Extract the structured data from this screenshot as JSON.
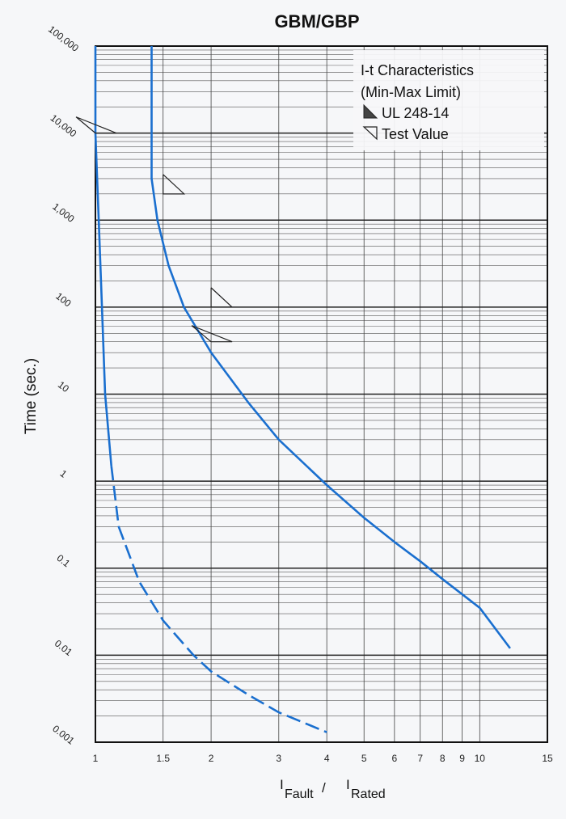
{
  "chart_data": {
    "type": "line",
    "title": "GBM/GBP",
    "ylabel": "Time (sec.)",
    "xlabel": {
      "numerator": "I",
      "numerator_sub": "Fault",
      "separator": "/",
      "denominator": "I",
      "denominator_sub": "Rated"
    },
    "x_scale": "log",
    "y_scale": "log",
    "xlim": [
      1,
      15
    ],
    "ylim": [
      0.001,
      100000
    ],
    "x_ticks": [
      1,
      1.5,
      2,
      3,
      4,
      5,
      6,
      7,
      8,
      9,
      10,
      15
    ],
    "x_tick_labels": [
      "1",
      "1.5",
      "2",
      "3",
      "4",
      "5",
      "6",
      "7",
      "8",
      "9",
      "10",
      "15"
    ],
    "y_ticks": [
      0.001,
      0.01,
      0.1,
      1,
      10,
      100,
      1000,
      10000,
      100000
    ],
    "y_tick_labels": [
      "0.001",
      "0.01",
      "0.1",
      "1",
      "10",
      "100",
      "1,000",
      "10,000",
      "100,000"
    ],
    "grid": true,
    "legend": {
      "placement": "top-right",
      "title_lines": [
        "I-t Characteristics",
        "(Min-Max Limit)"
      ],
      "entries": [
        {
          "marker": "filled-triangle",
          "label": "UL 248-14"
        },
        {
          "marker": "open-triangle",
          "label": "Test Value"
        }
      ]
    },
    "series": [
      {
        "role": "min-limit",
        "color": "#1a6fcf",
        "solid_points": [
          [
            1.0,
            100000
          ],
          [
            1.0,
            10000
          ],
          [
            1.02,
            1000
          ],
          [
            1.04,
            100
          ],
          [
            1.06,
            10
          ],
          [
            1.1,
            1.5
          ]
        ],
        "dashed_points": [
          [
            1.1,
            1.5
          ],
          [
            1.15,
            0.3
          ],
          [
            1.3,
            0.07
          ],
          [
            1.5,
            0.025
          ],
          [
            1.8,
            0.01
          ],
          [
            2.0,
            0.0065
          ],
          [
            2.5,
            0.0035
          ],
          [
            3.0,
            0.0022
          ],
          [
            4.0,
            0.0013
          ]
        ]
      },
      {
        "role": "max-limit",
        "color": "#1a6fcf",
        "solid_points": [
          [
            1.4,
            100000
          ],
          [
            1.4,
            3000
          ],
          [
            1.45,
            1000
          ],
          [
            1.55,
            300
          ],
          [
            1.7,
            100
          ],
          [
            2.0,
            30
          ],
          [
            2.5,
            8
          ],
          [
            3.0,
            3
          ],
          [
            4.0,
            0.9
          ],
          [
            5.0,
            0.38
          ],
          [
            6.0,
            0.2
          ],
          [
            7.0,
            0.12
          ],
          [
            8.0,
            0.075
          ],
          [
            10.0,
            0.035
          ],
          [
            12.0,
            0.012
          ]
        ]
      }
    ],
    "markers": [
      {
        "type": "ul",
        "x": 1.0,
        "y": 10000
      },
      {
        "type": "test",
        "x": 1.5,
        "y": 2000
      },
      {
        "type": "test",
        "x": 2.0,
        "y": 100
      },
      {
        "type": "ul",
        "x": 2.0,
        "y": 40
      }
    ]
  }
}
